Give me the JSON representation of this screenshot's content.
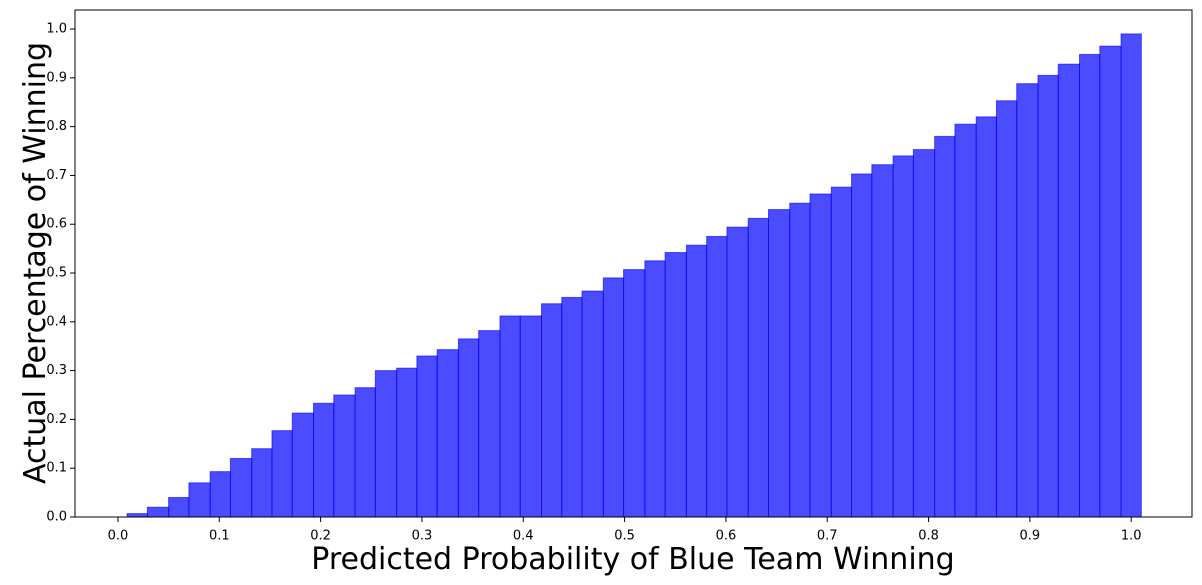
{
  "chart_data": {
    "type": "histogram",
    "xlabel": "Predicted Probability of Blue Team Winning",
    "ylabel": "Actual Percentage of Winning",
    "bins": [
      0.009,
      0.029,
      0.05,
      0.07,
      0.091,
      0.111,
      0.132,
      0.152,
      0.172,
      0.193,
      0.213,
      0.234,
      0.254,
      0.275,
      0.295,
      0.315,
      0.336,
      0.356,
      0.377,
      0.397,
      0.418,
      0.438,
      0.458,
      0.479,
      0.499,
      0.52,
      0.54,
      0.561,
      0.581,
      0.601,
      0.622,
      0.642,
      0.663,
      0.683,
      0.704,
      0.724,
      0.744,
      0.765,
      0.785,
      0.806,
      0.826,
      0.847,
      0.867,
      0.887,
      0.908,
      0.928,
      0.949,
      0.969,
      0.99,
      1.01
    ],
    "values": [
      0.007,
      0.02,
      0.04,
      0.07,
      0.093,
      0.12,
      0.14,
      0.177,
      0.213,
      0.233,
      0.25,
      0.265,
      0.3,
      0.305,
      0.33,
      0.343,
      0.365,
      0.382,
      0.412,
      0.412,
      0.437,
      0.45,
      0.463,
      0.49,
      0.507,
      0.525,
      0.542,
      0.557,
      0.575,
      0.594,
      0.612,
      0.63,
      0.643,
      0.662,
      0.676,
      0.703,
      0.722,
      0.74,
      0.753,
      0.78,
      0.805,
      0.82,
      0.853,
      0.888,
      0.905,
      0.928,
      0.948,
      0.965,
      0.99
    ],
    "color": "#0000ff",
    "xlim": [
      -0.0424,
      1.06
    ],
    "ylim": [
      0,
      1.039
    ],
    "xticks": [
      {
        "value": 0,
        "label": "0.0"
      },
      0.1,
      0.2,
      0.3,
      0.4,
      0.5,
      0.6,
      0.7,
      0.8,
      0.9,
      {
        "value": 1,
        "label": "1.0"
      }
    ],
    "yticks": [
      {
        "value": 0,
        "label": "0.0"
      },
      0.1,
      0.2,
      0.3,
      0.4,
      0.5,
      0.6,
      0.7,
      0.8,
      0.9,
      {
        "value": 1,
        "label": "1.0"
      }
    ]
  }
}
